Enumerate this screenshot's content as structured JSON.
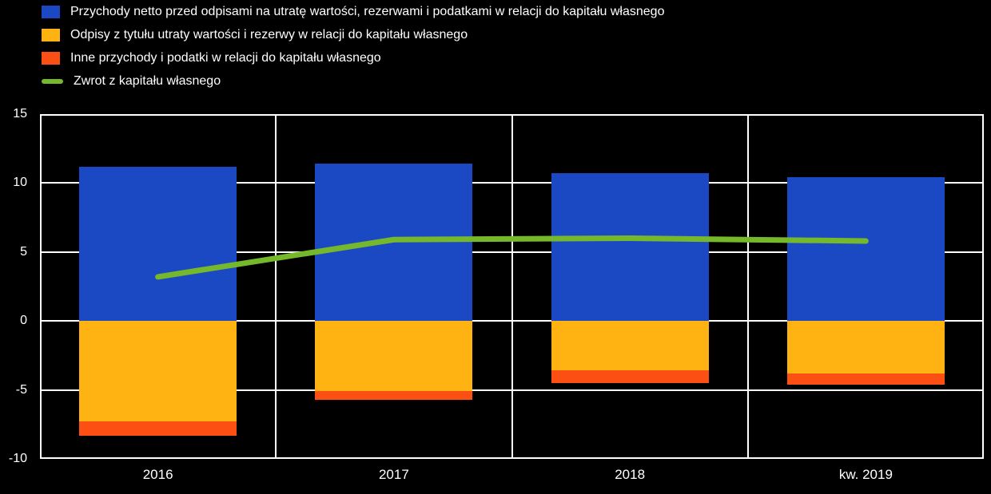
{
  "legend": {
    "items": [
      {
        "label": "Przychody netto przed odpisami na utratę wartości, rezerwami i podatkami w relacji do kapitału własnego",
        "color": "#1B49C4",
        "swatch": "square"
      },
      {
        "label": "Odpisy z tytułu utraty wartości i rezerwy w relacji do kapitału własnego",
        "color": "#FFB312",
        "swatch": "square"
      },
      {
        "label": "Inne przychody i podatki w relacji do kapitału własnego",
        "color": "#FC4F13",
        "swatch": "square"
      },
      {
        "label": "Zwrot z kapitału własnego",
        "color": "#76B82B",
        "swatch": "line"
      }
    ]
  },
  "chart_data": {
    "type": "bar",
    "subtype": "stacked-bars-with-line",
    "categories": [
      "2016",
      "2017",
      "2018",
      "kw. 2019"
    ],
    "series": [
      {
        "name": "Przychody netto przed odpisami na utratę wartości, rezerwami i podatkami w relacji do kapitału własnego",
        "type": "bar",
        "color": "#1B49C4",
        "values": [
          11.2,
          11.4,
          10.7,
          10.4
        ]
      },
      {
        "name": "Odpisy z tytułu utraty wartości i rezerwy w relacji do kapitału własnego",
        "type": "bar",
        "color": "#FFB312",
        "values": [
          -7.3,
          -5.1,
          -3.6,
          -3.8
        ]
      },
      {
        "name": "Inne przychody i podatki w relacji do kapitału własnego",
        "type": "bar",
        "color": "#FC4F13",
        "values": [
          -1.0,
          -0.6,
          -0.9,
          -0.8
        ]
      },
      {
        "name": "Zwrot z kapitału własnego",
        "type": "line",
        "color": "#76B82B",
        "values": [
          3.2,
          5.9,
          6.0,
          5.8
        ]
      }
    ],
    "title": "",
    "xlabel": "",
    "ylabel": "",
    "ylim": [
      -10,
      15
    ],
    "yticks": [
      15,
      10,
      5,
      0,
      -5,
      -10
    ],
    "grid": true,
    "background_color": "#000000",
    "gridline_color": "#FFFFFF",
    "text_color": "#FFFFFF",
    "legend_position": "top-left",
    "bar_width_fraction": 0.667,
    "line_stroke_width": 7
  }
}
